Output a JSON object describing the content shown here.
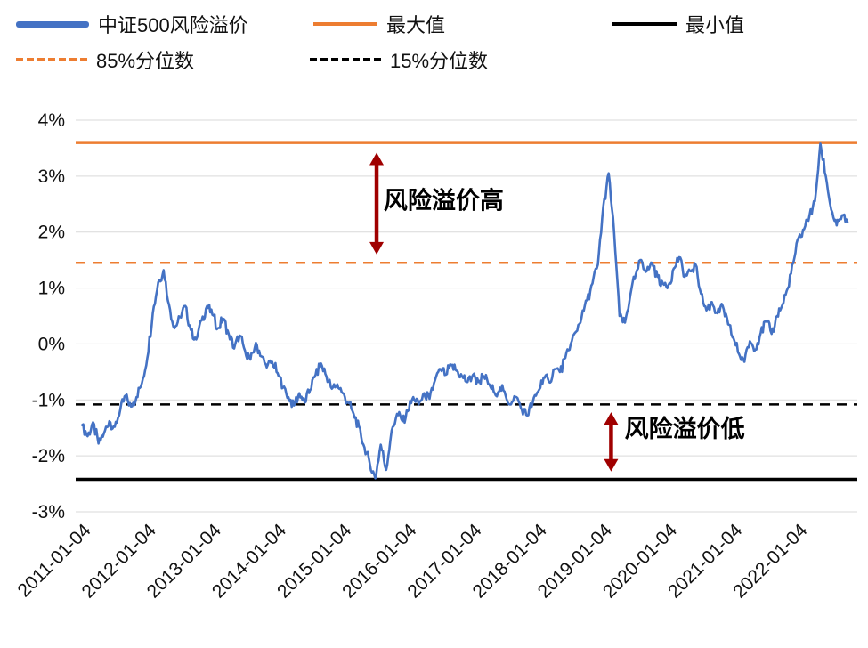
{
  "legend": {
    "series": {
      "label": "中证500风险溢价",
      "color": "#4472C4"
    },
    "max": {
      "label": "最大值",
      "color": "#ED7D31"
    },
    "min": {
      "label": "最小值",
      "color": "#000000"
    },
    "p85": {
      "label": "85%分位数",
      "color": "#ED7D31"
    },
    "p15": {
      "label": "15%分位数",
      "color": "#000000"
    }
  },
  "chart_data": {
    "type": "line",
    "title": "",
    "xlabel": "",
    "ylabel": "",
    "ylim": [
      -3,
      4
    ],
    "xlim": [
      2010.9,
      2022.9
    ],
    "grid": "horizontal",
    "grid_color": "#D9D9D9",
    "yticks": [
      4,
      3,
      2,
      1,
      0,
      -1,
      -2,
      -3
    ],
    "ytick_labels": [
      "4%",
      "3%",
      "2%",
      "1%",
      "0%",
      "-1%",
      "-2%",
      "-3%"
    ],
    "xticks": [
      2011.01,
      2012.01,
      2013.01,
      2014.01,
      2015.01,
      2016.01,
      2017.01,
      2018.01,
      2019.01,
      2020.01,
      2021.01,
      2022.01
    ],
    "xtick_labels": [
      "2011-01-04",
      "2012-01-04",
      "2013-01-04",
      "2014-01-04",
      "2015-01-04",
      "2016-01-04",
      "2017-01-04",
      "2018-01-04",
      "2019-01-04",
      "2020-01-04",
      "2021-01-04",
      "2022-01-04"
    ],
    "reference_lines": [
      {
        "name": "max",
        "label": "最大值",
        "value": 3.6,
        "color": "#ED7D31",
        "dash": false,
        "width": 3.5
      },
      {
        "name": "p85",
        "label": "85%分位数",
        "value": 1.45,
        "color": "#ED7D31",
        "dash": true,
        "width": 2.5
      },
      {
        "name": "p15",
        "label": "15%分位数",
        "value": -1.08,
        "color": "#000000",
        "dash": true,
        "width": 2.5
      },
      {
        "name": "min",
        "label": "最小值",
        "value": -2.42,
        "color": "#000000",
        "dash": false,
        "width": 3.5
      }
    ],
    "series": [
      {
        "name": "中证500风险溢价",
        "color": "#4472C4",
        "width": 2.6,
        "x_start": 2011.0,
        "x_step": 0.0833333,
        "y": [
          -1.45,
          -1.65,
          -1.4,
          -1.78,
          -1.6,
          -1.38,
          -1.48,
          -1.18,
          -0.92,
          -1.12,
          -0.95,
          -0.7,
          -0.25,
          0.55,
          1.1,
          1.32,
          0.7,
          0.28,
          0.48,
          0.68,
          0.25,
          0.08,
          0.42,
          0.68,
          0.52,
          0.28,
          0.45,
          0.18,
          -0.08,
          0.15,
          -0.12,
          -0.28,
          0.02,
          -0.22,
          -0.42,
          -0.32,
          -0.52,
          -0.78,
          -0.95,
          -1.1,
          -0.88,
          -1.05,
          -0.82,
          -0.55,
          -0.35,
          -0.58,
          -0.8,
          -0.72,
          -0.88,
          -1.05,
          -1.25,
          -1.48,
          -1.85,
          -2.15,
          -2.4,
          -1.8,
          -2.25,
          -1.55,
          -1.25,
          -1.38,
          -1.2,
          -0.95,
          -1.08,
          -0.88,
          -0.98,
          -0.65,
          -0.45,
          -0.55,
          -0.38,
          -0.48,
          -0.58,
          -0.68,
          -0.55,
          -0.68,
          -0.58,
          -0.72,
          -0.88,
          -0.78,
          -0.92,
          -1.08,
          -0.95,
          -1.18,
          -1.28,
          -1.05,
          -0.85,
          -0.6,
          -0.68,
          -0.45,
          -0.5,
          -0.25,
          0.0,
          0.22,
          0.48,
          0.78,
          1.08,
          1.42,
          2.45,
          3.05,
          2.0,
          0.5,
          0.38,
          0.88,
          1.25,
          1.5,
          1.3,
          1.45,
          1.2,
          1.08,
          1.05,
          1.35,
          1.55,
          1.2,
          1.3,
          1.42,
          0.9,
          0.6,
          0.75,
          0.55,
          0.68,
          0.35,
          0.1,
          -0.18,
          -0.32,
          0.05,
          -0.1,
          0.2,
          0.4,
          0.18,
          0.5,
          0.7,
          1.0,
          1.45,
          1.9,
          2.05,
          2.3,
          2.55,
          3.58,
          3.0,
          2.4,
          2.12,
          2.3,
          2.18
        ]
      }
    ],
    "annotations": [
      {
        "label": "风险溢价高",
        "text_x": 2016.55,
        "text_y": 2.42,
        "arrow_x": 2015.52,
        "arrow_y1": 3.42,
        "arrow_y2": 1.6,
        "color": "#A00000"
      },
      {
        "label": "风险溢价低",
        "text_x": 2020.25,
        "text_y": -1.66,
        "arrow_x": 2019.12,
        "arrow_y1": -1.22,
        "arrow_y2": -2.28,
        "color": "#A00000"
      }
    ],
    "noise_amplitude": 0.11,
    "noise_subdivisions": 5
  }
}
